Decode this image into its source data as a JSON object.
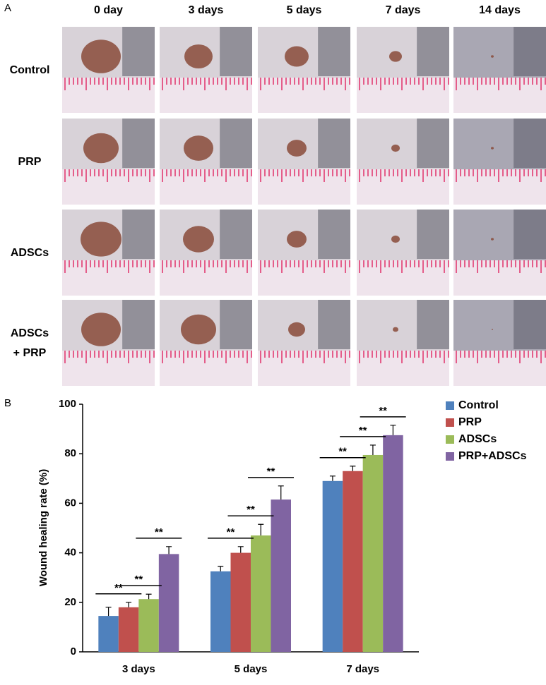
{
  "panel_a": {
    "label": "A",
    "columns": [
      "0 day",
      "3 days",
      "5 days",
      "7 days",
      "14 days"
    ],
    "rows": [
      [
        "Control"
      ],
      [
        "PRP"
      ],
      [
        "ADSCs"
      ],
      [
        "ADSCs",
        "+ PRP"
      ]
    ]
  },
  "chart_data": {
    "type": "bar",
    "panel_label": "B",
    "y_label": "Wound healing rate (%)",
    "categories": [
      "3 days",
      "5 days",
      "7 days"
    ],
    "series": [
      {
        "name": "Control",
        "color": "#4f81bd",
        "values": [
          14.5,
          32.5,
          69
        ],
        "errors": [
          3.5,
          2,
          2
        ]
      },
      {
        "name": "PRP",
        "color": "#c0504d",
        "values": [
          18,
          40,
          73
        ],
        "errors": [
          2,
          2.5,
          2
        ]
      },
      {
        "name": "ADSCs",
        "color": "#9bbb59",
        "values": [
          21.3,
          47,
          79.5
        ],
        "errors": [
          2,
          4.5,
          4
        ]
      },
      {
        "name": "PRP+ADSCs",
        "color": "#8064a2",
        "values": [
          39.5,
          61.5,
          87.5
        ],
        "errors": [
          3,
          5.5,
          4
        ]
      }
    ],
    "significance_labels": [
      [
        "**",
        "**",
        "**"
      ],
      [
        "**",
        "**",
        "**"
      ],
      [
        "**",
        "**",
        "**"
      ]
    ],
    "ylim": [
      0,
      100
    ],
    "yticks": [
      0,
      20,
      40,
      60,
      80,
      100
    ],
    "grid": false
  }
}
